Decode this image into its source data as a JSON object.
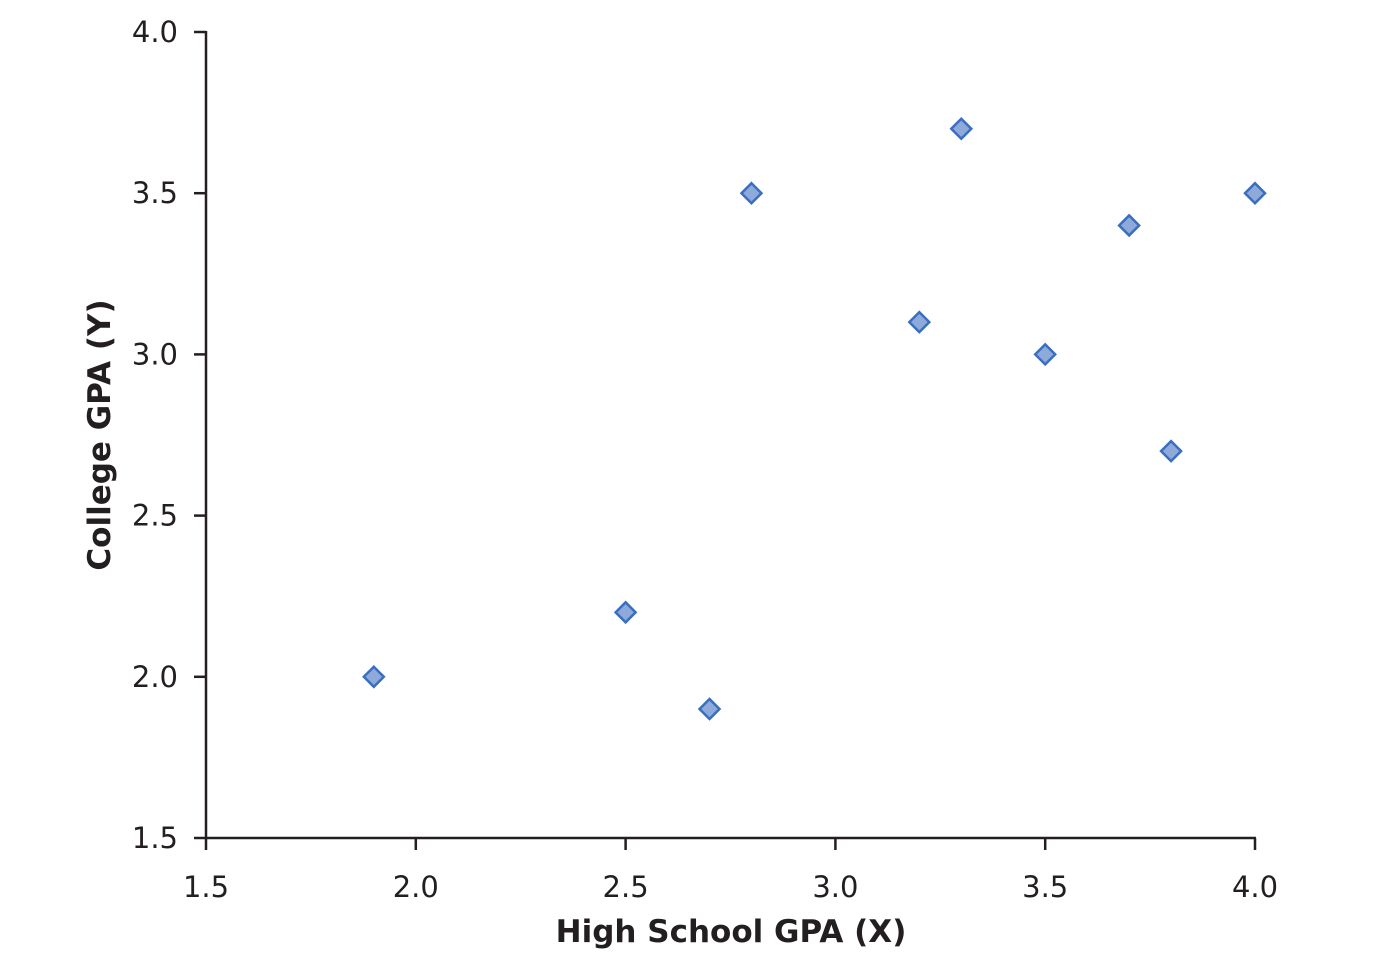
{
  "chart_data": {
    "type": "scatter",
    "title": "",
    "xlabel": "High School GPA (X)",
    "ylabel": "College GPA (Y)",
    "xlim": [
      1.5,
      4.0
    ],
    "ylim": [
      1.5,
      4.0
    ],
    "xticks": [
      "1.5",
      "2.0",
      "2.5",
      "3.0",
      "3.5",
      "4.0"
    ],
    "yticks": [
      "1.5",
      "2.0",
      "2.5",
      "3.0",
      "3.5",
      "4.0"
    ],
    "grid": false,
    "marker": "diamond",
    "colors": {
      "fill": "#8eaadb",
      "stroke": "#3a6fc0"
    },
    "points": [
      {
        "x": 1.9,
        "y": 2.0
      },
      {
        "x": 2.5,
        "y": 2.2
      },
      {
        "x": 2.7,
        "y": 1.9
      },
      {
        "x": 2.8,
        "y": 3.5
      },
      {
        "x": 3.2,
        "y": 3.1
      },
      {
        "x": 3.3,
        "y": 3.7
      },
      {
        "x": 3.5,
        "y": 3.0
      },
      {
        "x": 3.7,
        "y": 3.4
      },
      {
        "x": 3.8,
        "y": 2.7
      },
      {
        "x": 4.0,
        "y": 3.5
      }
    ]
  }
}
